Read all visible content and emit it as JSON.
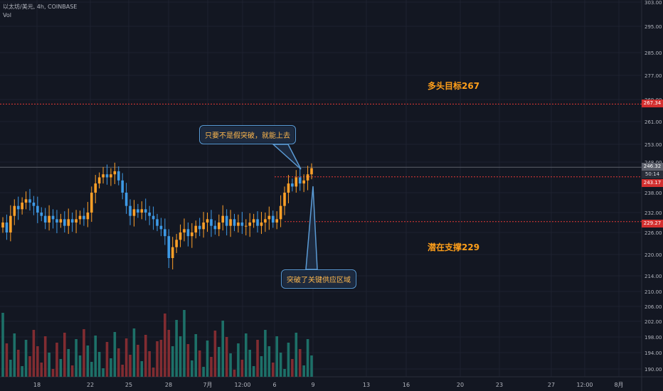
{
  "legend": {
    "symbol": "以太坊/美元, 4h, COINBASE",
    "volume_label": "Vol"
  },
  "colors": {
    "background": "#131722",
    "grid": "#1e2230",
    "up": "#ffa028",
    "down": "#3e9ae6",
    "vol_up": "#26a69a",
    "vol_down": "#ef5350",
    "target_line": "#e53935",
    "support_line": "#e53935"
  },
  "annotations": {
    "callout_top": "只要不是假突破，就能上去",
    "callout_bottom": "突破了关键供应区域",
    "bull_target": "多头目标267",
    "support": "潜在支撑229"
  },
  "price_tags": {
    "target": "267.34",
    "current": "246.32",
    "countdown": "50:14",
    "resistance": "243.17",
    "support": "229.27"
  },
  "chart_data": {
    "type": "candlestick",
    "y_axis": {
      "ticks": [
        "303.00",
        "295.00",
        "285.00",
        "277.00",
        "269.00",
        "261.00",
        "253.00",
        "248.00",
        "238.00",
        "232.00",
        "226.00",
        "220.00",
        "214.00",
        "210.00",
        "206.00",
        "202.00",
        "198.00",
        "194.00",
        "190.00"
      ],
      "range": [
        188,
        304
      ]
    },
    "x_axis": {
      "ticks": [
        "18",
        "22",
        "25",
        "28",
        "7月",
        "12:00",
        "6",
        "9",
        "13",
        "16",
        "20",
        "23",
        "27",
        "12:00",
        "8月"
      ]
    },
    "horizontal_lines": [
      {
        "name": "target",
        "price": 267.34,
        "style": "dotted"
      },
      {
        "name": "resistance",
        "price": 243.17,
        "style": "dotted"
      },
      {
        "name": "support",
        "price": 229.27,
        "style": "dotted"
      },
      {
        "name": "last-price",
        "price": 246.32,
        "style": "solid"
      }
    ],
    "candles_close": [
      229,
      226,
      231,
      234,
      233,
      235,
      236,
      235,
      234,
      232,
      231,
      229,
      231,
      230,
      229,
      230,
      228,
      230,
      229,
      230,
      231,
      230,
      232,
      238,
      241,
      243,
      244,
      243,
      244,
      245,
      242,
      238,
      234,
      231,
      233,
      232,
      233,
      232,
      231,
      230,
      228,
      227,
      225,
      219,
      222,
      224,
      226,
      227,
      225,
      226,
      228,
      227,
      229,
      230,
      228,
      227,
      229,
      231,
      228,
      230,
      228,
      229,
      228,
      228,
      229,
      230,
      228,
      229,
      230,
      231,
      229,
      230,
      234,
      238,
      241,
      240,
      243,
      241,
      242,
      244,
      246
    ]
  }
}
